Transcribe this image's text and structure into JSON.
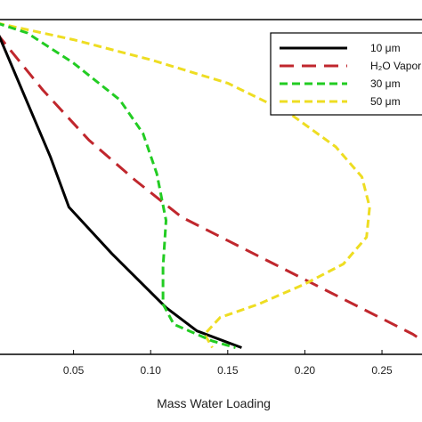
{
  "chart_data": {
    "type": "line",
    "title": "",
    "xlabel": "Mass Water Loading",
    "ylabel": "",
    "xlim": [
      0.0,
      0.28
    ],
    "ylim": [
      0.0,
      1.0
    ],
    "x_ticks": [
      0.05,
      0.1,
      0.15,
      0.2,
      0.25
    ],
    "x_tick_labels": [
      "0.05",
      "0.10",
      "0.15",
      "0.20",
      "0.25"
    ],
    "grid": false,
    "legend_position": "top-right",
    "series": [
      {
        "name": "10 μm",
        "color": "#000000",
        "dash": "solid",
        "points": [
          [
            0.0,
            0.97
          ],
          [
            0.035,
            0.59
          ],
          [
            0.047,
            0.44
          ],
          [
            0.075,
            0.3
          ],
          [
            0.11,
            0.14
          ],
          [
            0.13,
            0.07
          ],
          [
            0.159,
            0.02
          ]
        ]
      },
      {
        "name": "H₂O Vapor",
        "color": "#c0272d",
        "dash": "long-dash",
        "points": [
          [
            0.0,
            0.96
          ],
          [
            0.03,
            0.79
          ],
          [
            0.06,
            0.64
          ],
          [
            0.09,
            0.52
          ],
          [
            0.12,
            0.41
          ],
          [
            0.15,
            0.34
          ],
          [
            0.18,
            0.27
          ],
          [
            0.21,
            0.2
          ],
          [
            0.24,
            0.13
          ],
          [
            0.27,
            0.06
          ],
          [
            0.28,
            0.03
          ]
        ]
      },
      {
        "name": "30 μm",
        "color": "#22cc22",
        "dash": "dash",
        "points": [
          [
            0.0,
            0.99
          ],
          [
            0.02,
            0.96
          ],
          [
            0.05,
            0.87
          ],
          [
            0.08,
            0.76
          ],
          [
            0.095,
            0.66
          ],
          [
            0.104,
            0.54
          ],
          [
            0.11,
            0.4
          ],
          [
            0.108,
            0.26
          ],
          [
            0.108,
            0.15
          ],
          [
            0.115,
            0.09
          ],
          [
            0.125,
            0.07
          ],
          [
            0.14,
            0.04
          ],
          [
            0.155,
            0.02
          ]
        ]
      },
      {
        "name": "50 μm",
        "color": "#eedd22",
        "dash": "dash",
        "points": [
          [
            0.0,
            0.99
          ],
          [
            0.05,
            0.94
          ],
          [
            0.1,
            0.88
          ],
          [
            0.15,
            0.81
          ],
          [
            0.19,
            0.72
          ],
          [
            0.22,
            0.62
          ],
          [
            0.237,
            0.53
          ],
          [
            0.242,
            0.44
          ],
          [
            0.24,
            0.35
          ],
          [
            0.225,
            0.27
          ],
          [
            0.2,
            0.21
          ],
          [
            0.17,
            0.15
          ],
          [
            0.145,
            0.11
          ],
          [
            0.135,
            0.06
          ],
          [
            0.14,
            0.02
          ]
        ]
      }
    ]
  }
}
